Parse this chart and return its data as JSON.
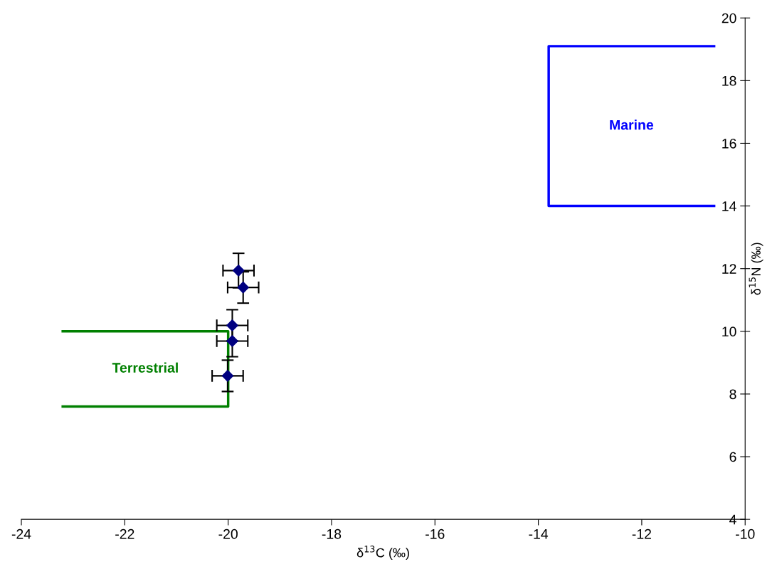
{
  "chart_data": {
    "type": "scatter",
    "xlabel": "δ$^{13}$C (‰)",
    "ylabel": "δ$^{15}$N (‰)",
    "xlim": [
      -24,
      -10
    ],
    "xticks": [
      -24,
      -22,
      -20,
      -18,
      -16,
      -14,
      -12,
      -10
    ],
    "ylim": [
      4,
      20
    ],
    "yticks": [
      4,
      6,
      8,
      10,
      12,
      14,
      16,
      18,
      20
    ],
    "grid": false,
    "legend": false,
    "series": [
      {
        "marker": "diamond",
        "color": "#000080",
        "x": [
          -19.8,
          -19.71,
          -19.92,
          -19.92,
          -20.01
        ],
        "values": [
          11.94,
          11.4,
          10.19,
          9.69,
          8.58
        ],
        "errors": [
          0.55,
          0.5,
          0.5,
          0.5,
          0.5
        ],
        "xerrors": [
          0.3,
          0.3,
          0.3,
          0.3,
          0.3
        ]
      },
      {
        "type": "line",
        "name": "Terrestrial",
        "color": "#008000",
        "x": [
          -23.2,
          -20.0,
          -20.0,
          -23.2
        ],
        "values": [
          10.0,
          10.0,
          7.6,
          7.6
        ]
      },
      {
        "type": "line",
        "name": "Marine",
        "color": "#0000ff",
        "x": [
          -10.6,
          -13.8,
          -13.8,
          -10.6
        ],
        "values": [
          19.1,
          19.1,
          14.0,
          14.0
        ]
      }
    ]
  }
}
